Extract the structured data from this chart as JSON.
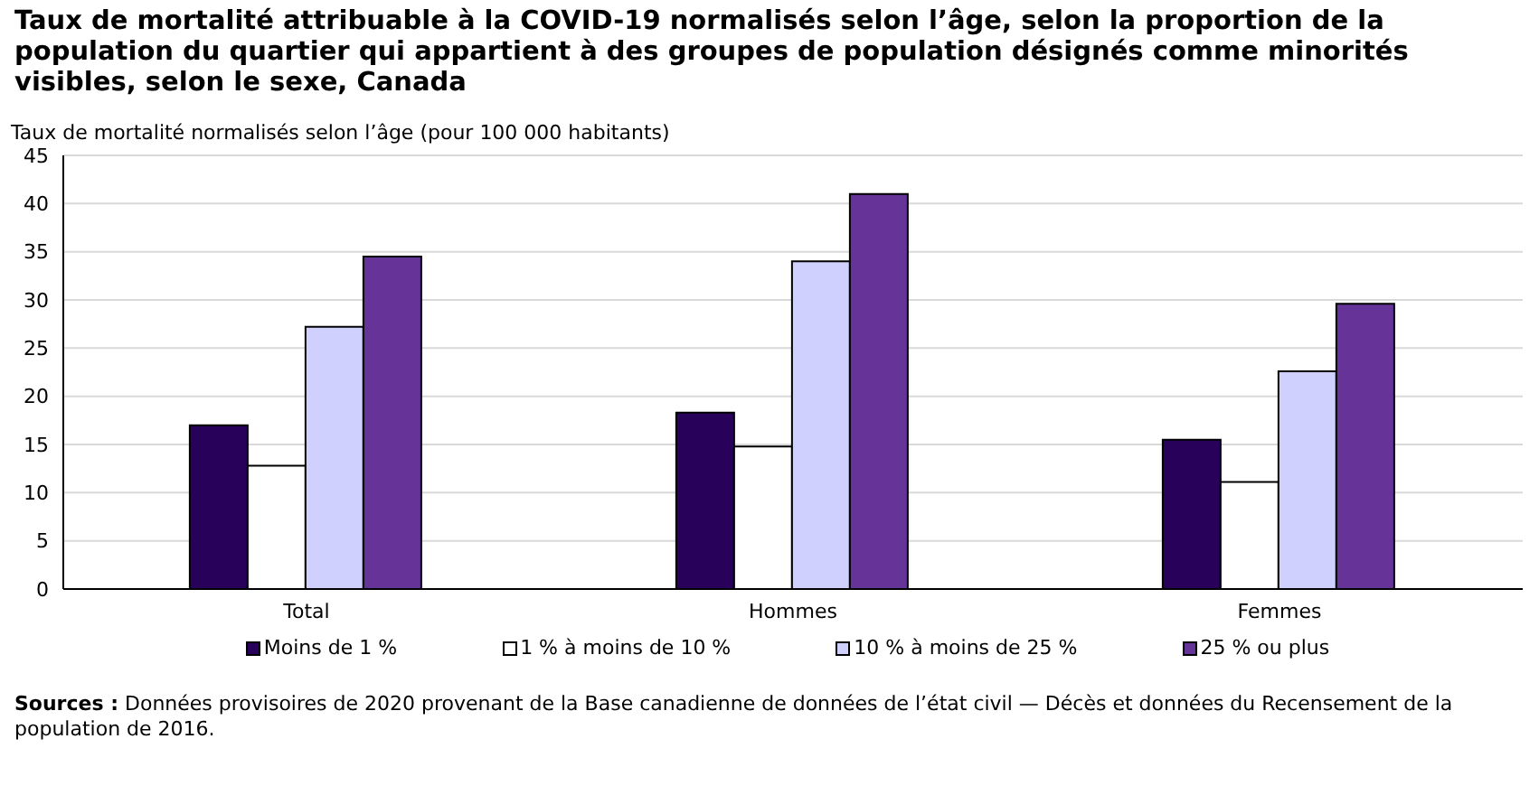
{
  "chart_data": {
    "type": "bar",
    "title": "Taux de mortalité attribuable à la COVID-19 normalisés selon l’âge, selon la proportion de la population du quartier qui appartient à des groupes de population désignés comme minorités visibles, selon le sexe, Canada",
    "ylabel": "Taux de mortalité normalisés selon l’âge (pour 100 000 habitants)",
    "categories": [
      "Total",
      "Hommes",
      "Femmes"
    ],
    "series": [
      {
        "name": "Moins de 1 %",
        "color": "#28025a",
        "values": [
          17.0,
          18.3,
          15.5
        ]
      },
      {
        "name": "1 % à moins de 10 %",
        "color": "#ffffff",
        "values": [
          12.8,
          14.8,
          11.1
        ]
      },
      {
        "name": "10 % à moins de 25 %",
        "color": "#d0d0fe",
        "values": [
          27.2,
          34.0,
          22.6
        ]
      },
      {
        "name": "25 % ou plus",
        "color": "#663399",
        "values": [
          34.5,
          41.0,
          29.6
        ]
      }
    ],
    "ylim": [
      0,
      45
    ],
    "yticks": [
      0,
      5,
      10,
      15,
      20,
      25,
      30,
      35,
      40,
      45
    ],
    "grid": "y",
    "legend": "bottom",
    "annotations": [
      "Sources : Données provisoires de 2020 provenant de la Base canadienne de données de l’état civil — Décès et données du Recensement de la population de 2016."
    ]
  }
}
